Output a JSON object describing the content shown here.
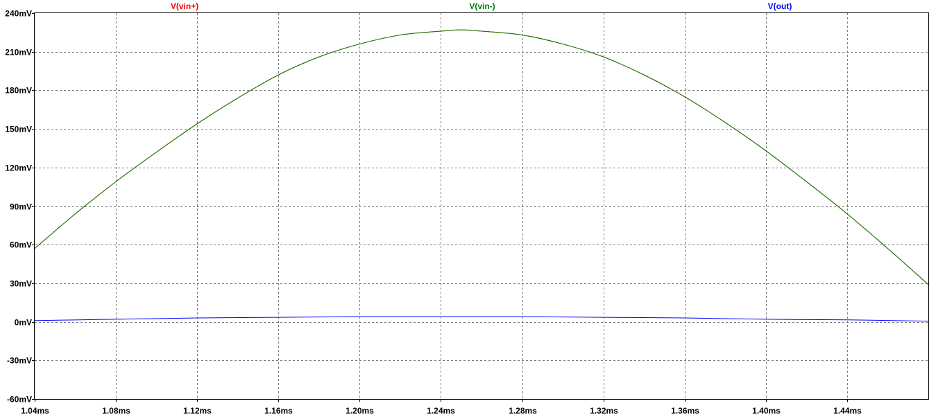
{
  "chart_data": {
    "type": "line",
    "title": "",
    "xlabel": "",
    "ylabel": "",
    "xlim": [
      1.04,
      1.48
    ],
    "ylim": [
      -60,
      240
    ],
    "grid": true,
    "legend_position": "top",
    "x_ticks": [
      1.04,
      1.08,
      1.12,
      1.16,
      1.2,
      1.24,
      1.28,
      1.32,
      1.36,
      1.4,
      1.44
    ],
    "x_tick_labels": [
      "1.04ms",
      "1.08ms",
      "1.12ms",
      "1.16ms",
      "1.20ms",
      "1.24ms",
      "1.28ms",
      "1.32ms",
      "1.36ms",
      "1.40ms",
      "1.44ms"
    ],
    "y_ticks": [
      240,
      210,
      180,
      150,
      120,
      90,
      60,
      30,
      0,
      -30,
      -60
    ],
    "y_tick_labels": [
      "240mV",
      "210mV",
      "180mV",
      "150mV",
      "120mV",
      "90mV",
      "60mV",
      "30mV",
      "0mV",
      "-30mV",
      "-60mV"
    ],
    "series": [
      {
        "name": "V(vin+)",
        "color": "#ff0000",
        "x": [
          1.04,
          1.06,
          1.08,
          1.1,
          1.12,
          1.14,
          1.16,
          1.18,
          1.2,
          1.22,
          1.24,
          1.25,
          1.26,
          1.28,
          1.3,
          1.32,
          1.34,
          1.36,
          1.38,
          1.4,
          1.42,
          1.44,
          1.46,
          1.48
        ],
        "y": [
          57,
          84,
          109,
          132,
          154,
          174,
          192,
          206,
          216,
          223,
          226,
          227,
          226,
          223,
          216,
          206,
          192,
          175,
          155,
          133,
          109,
          84,
          57,
          29
        ]
      },
      {
        "name": "V(vin-)",
        "color": "#008000",
        "x": [
          1.04,
          1.06,
          1.08,
          1.1,
          1.12,
          1.14,
          1.16,
          1.18,
          1.2,
          1.22,
          1.24,
          1.25,
          1.26,
          1.28,
          1.3,
          1.32,
          1.34,
          1.36,
          1.38,
          1.4,
          1.42,
          1.44,
          1.46,
          1.48
        ],
        "y": [
          57,
          84,
          109,
          132,
          154,
          174,
          192,
          206,
          216,
          223,
          226,
          227,
          226,
          223,
          216,
          206,
          192,
          175,
          155,
          133,
          109,
          84,
          57,
          29
        ]
      },
      {
        "name": "V(out)",
        "color": "#0000ff",
        "x": [
          1.04,
          1.08,
          1.12,
          1.16,
          1.2,
          1.24,
          1.28,
          1.32,
          1.36,
          1.4,
          1.44,
          1.48
        ],
        "y": [
          1,
          2,
          3,
          3.5,
          4,
          4,
          4,
          3.5,
          3,
          2,
          1.5,
          0.5
        ]
      }
    ]
  }
}
